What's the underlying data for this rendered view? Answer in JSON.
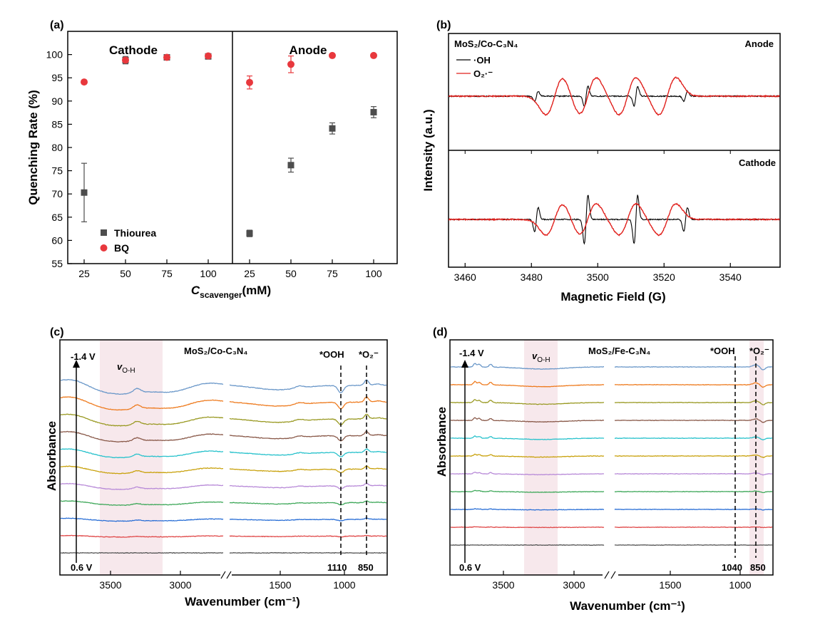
{
  "colors": {
    "thiourea": "#4d4d4d",
    "bq": "#e8383d",
    "oh_line": "#000000",
    "o2_line": "#e0201c",
    "shade": "#f7e8ec",
    "ftir_series": [
      "#6b98c9",
      "#ee7b1f",
      "#9a9a24",
      "#8a5a4a",
      "#29c2cc",
      "#c9a20e",
      "#b88ad8",
      "#3fa85a",
      "#2a6fd6",
      "#e04848",
      "#555555"
    ]
  },
  "chart_data": [
    {
      "panel": "(a)",
      "type": "scatter",
      "xlabel_main": "C",
      "xlabel_sub": "scavenger",
      "xlabel_unit": "(mM)",
      "ylabel": "Quenching Rate (%)",
      "ylim": [
        55,
        105
      ],
      "yticks": [
        55,
        60,
        65,
        70,
        75,
        80,
        85,
        90,
        95,
        100
      ],
      "regions": [
        "Cathode",
        "Anode"
      ],
      "categories": [
        "25",
        "50",
        "75",
        "100"
      ],
      "series": [
        {
          "name": "Thiourea",
          "marker": "square",
          "cathode": [
            70.3,
            98.8,
            99.4,
            99.6
          ],
          "cathode_err": [
            6.3,
            0.8,
            0.5,
            0.4
          ],
          "anode": [
            61.5,
            76.2,
            84.1,
            87.6
          ],
          "anode_err": [
            0.7,
            1.5,
            1.2,
            1.2
          ]
        },
        {
          "name": "BQ",
          "marker": "circle",
          "cathode": [
            94.1,
            98.8,
            99.4,
            99.7
          ],
          "cathode_err": [
            0.3,
            0.4,
            0.3,
            0.3
          ],
          "anode": [
            94.0,
            97.9,
            99.8,
            99.8
          ],
          "anode_err": [
            1.4,
            1.8,
            0.3,
            0.2
          ]
        }
      ]
    },
    {
      "panel": "(b)",
      "type": "line",
      "title": "MoS₂/Co-C₃N₄",
      "xlabel": "Magnetic Field (G)",
      "ylabel": "Intensity (a.u.)",
      "xlim": [
        3455,
        3555
      ],
      "xticks": [
        3460,
        3480,
        3500,
        3520,
        3540
      ],
      "subplots": [
        "Anode",
        "Cathode"
      ],
      "legend": [
        {
          "name": "·OH",
          "color_key": "oh_line"
        },
        {
          "name": "O₂·⁻",
          "color_key": "o2_line"
        }
      ],
      "dmpo_oh_lines_G": [
        3481.5,
        3496.5,
        3511.5,
        3526.5
      ],
      "dmpo_oh_intensity": [
        1,
        2,
        2,
        1
      ],
      "dmpo_o2_lines_G": [
        3487,
        3497,
        3509,
        3521
      ],
      "dmpo_o2_intensity": [
        1,
        1,
        1,
        1
      ]
    },
    {
      "panel": "(c)",
      "type": "line",
      "title": "MoS₂/Co-C₃N₄",
      "xlabel": "Wavenumber",
      "xlabel_unit": "(cm⁻¹)",
      "ylabel": "Absorbance",
      "xticks": [
        3500,
        3000,
        1500,
        1000
      ],
      "potential_top": "-1.4 V",
      "potential_bottom": "0.6 V",
      "band_label": "v",
      "band_sub": "O-H",
      "peak_labels": [
        "*OOH",
        "*O₂⁻"
      ],
      "peak_positions": [
        "1110",
        "850"
      ],
      "n_spectra": 11
    },
    {
      "panel": "(d)",
      "type": "line",
      "title": "MoS₂/Fe-C₃N₄",
      "xlabel": "Wavenumber",
      "xlabel_unit": "(cm⁻¹)",
      "ylabel": "Absorbance",
      "xticks": [
        3500,
        3000,
        1500,
        1000
      ],
      "potential_top": "-1.4 V",
      "potential_bottom": "0.6 V",
      "band_label": "v",
      "band_sub": "O-H",
      "peak_labels": [
        "*OOH",
        "*O₂⁻"
      ],
      "peak_positions": [
        "1040",
        "850"
      ],
      "n_spectra": 11
    }
  ]
}
